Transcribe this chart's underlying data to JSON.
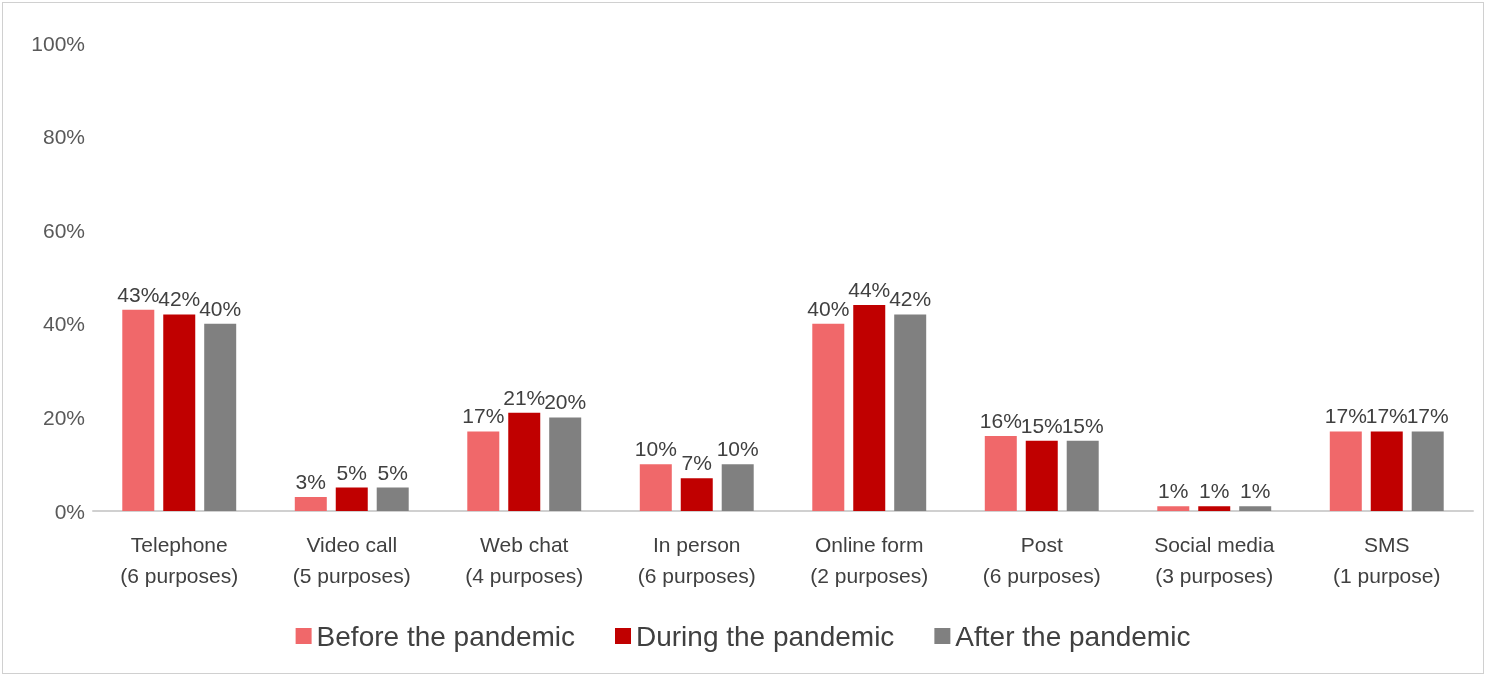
{
  "chart_data": {
    "type": "bar",
    "categories": [
      "Telephone\n(6 purposes)",
      "Video call\n(5 purposes)",
      "Web chat\n(4 purposes)",
      "In person\n(6 purposes)",
      "Online form\n(2 purposes)",
      "Post\n(6 purposes)",
      "Social media\n(3 purposes)",
      "SMS\n(1 purpose)"
    ],
    "series": [
      {
        "name": "Before the pandemic",
        "color": "#f0686a",
        "values": [
          43,
          3,
          17,
          10,
          40,
          16,
          1,
          17
        ],
        "value_labels": [
          "43%",
          "3%",
          "17%",
          "10%",
          "40%",
          "16%",
          "1%",
          "17%"
        ]
      },
      {
        "name": "During the pandemic",
        "color": "#c00000",
        "values": [
          42,
          5,
          21,
          7,
          44,
          15,
          1,
          17
        ],
        "value_labels": [
          "42%",
          "5%",
          "21%",
          "7%",
          "44%",
          "15%",
          "1%",
          "17%"
        ]
      },
      {
        "name": "After the pandemic",
        "color": "#808080",
        "values": [
          40,
          5,
          20,
          10,
          42,
          15,
          1,
          17
        ],
        "value_labels": [
          "40%",
          "5%",
          "20%",
          "10%",
          "42%",
          "15%",
          "1%",
          "17%"
        ]
      }
    ],
    "ylim": [
      0,
      100
    ],
    "yticks": [
      {
        "value": 0,
        "label": "0%"
      },
      {
        "value": 20,
        "label": "20%"
      },
      {
        "value": 40,
        "label": "40%"
      },
      {
        "value": 60,
        "label": "60%"
      },
      {
        "value": 80,
        "label": "80%"
      },
      {
        "value": 100,
        "label": "100%"
      }
    ],
    "grid": false,
    "legend": "bottom"
  }
}
